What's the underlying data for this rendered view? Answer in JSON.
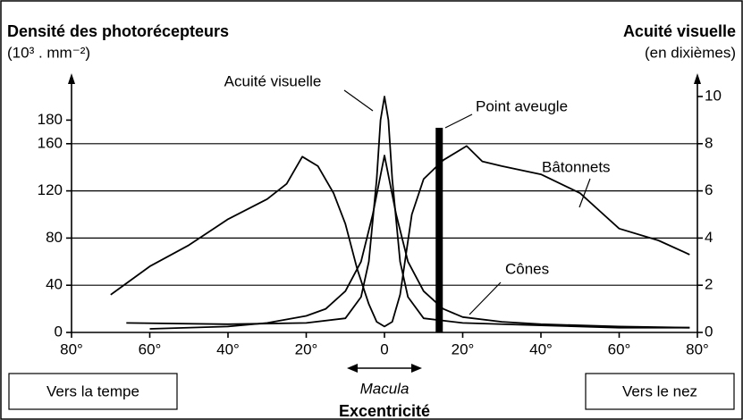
{
  "chart_data": {
    "type": "line",
    "title": "Densité des photorécepteurs",
    "ylabel": "(10³ . mm⁻²)",
    "y2title": "Acuité visuelle",
    "y2label": "(en dixièmes)",
    "xlabel": "Excentricité",
    "xlim": [
      -80,
      80
    ],
    "xticks": [
      {
        "value": -80,
        "label": "80°"
      },
      {
        "value": -60,
        "label": "60°"
      },
      {
        "value": -40,
        "label": "40°"
      },
      {
        "value": -20,
        "label": "20°"
      },
      0,
      {
        "value": 20,
        "label": "20°"
      },
      {
        "value": 40,
        "label": "40°"
      },
      {
        "value": 60,
        "label": "60°"
      },
      {
        "value": 80,
        "label": "80°"
      }
    ],
    "ylim": [
      0,
      200
    ],
    "yticks": [
      0,
      40,
      80,
      120,
      160,
      180
    ],
    "y2lim": [
      0,
      10
    ],
    "y2ticks": [
      0,
      2,
      4,
      6,
      8,
      10
    ],
    "grid": true,
    "series": [
      {
        "name": "Bâtonnets",
        "color": "#000000",
        "x": [
          -70,
          -60,
          -50,
          -40,
          -30,
          -25,
          -21,
          -17,
          -13,
          -10,
          -7,
          -4,
          -2,
          0,
          2,
          4,
          7,
          10,
          15,
          21,
          25,
          30,
          40,
          50,
          55,
          60,
          70,
          78
        ],
        "values": [
          32,
          56,
          74,
          96,
          113,
          126,
          149,
          141,
          118,
          92,
          54,
          24,
          9,
          5,
          9,
          32,
          100,
          130,
          146,
          158,
          145,
          141,
          134,
          118,
          103,
          88,
          78,
          66
        ]
      },
      {
        "name": "Cônes",
        "color": "#000000",
        "x": [
          -60,
          -40,
          -30,
          -20,
          -15,
          -10,
          -6,
          -3,
          0,
          3,
          6,
          10,
          15,
          20,
          30,
          40,
          60,
          78
        ],
        "values": [
          3,
          5,
          8,
          14,
          20,
          35,
          60,
          100,
          150,
          100,
          60,
          35,
          20,
          13,
          9,
          7,
          5,
          4
        ]
      },
      {
        "name": "Acuité visuelle",
        "color": "#000000",
        "axis": "y2",
        "x": [
          -66,
          -40,
          -20,
          -10,
          -6,
          -4,
          -2,
          -1,
          0,
          1,
          2,
          4,
          6,
          10,
          20,
          40,
          60,
          78
        ],
        "values": [
          0.4,
          0.35,
          0.4,
          0.6,
          1.5,
          3,
          6.5,
          9,
          10,
          9,
          6.5,
          3,
          1.5,
          0.6,
          0.4,
          0.3,
          0.2,
          0.2
        ]
      }
    ],
    "blind_spot": {
      "label": "Point aveugle",
      "x": 14
    },
    "macula_label": "Macula",
    "left_note": "Vers la tempe",
    "right_note": "Vers le nez"
  }
}
